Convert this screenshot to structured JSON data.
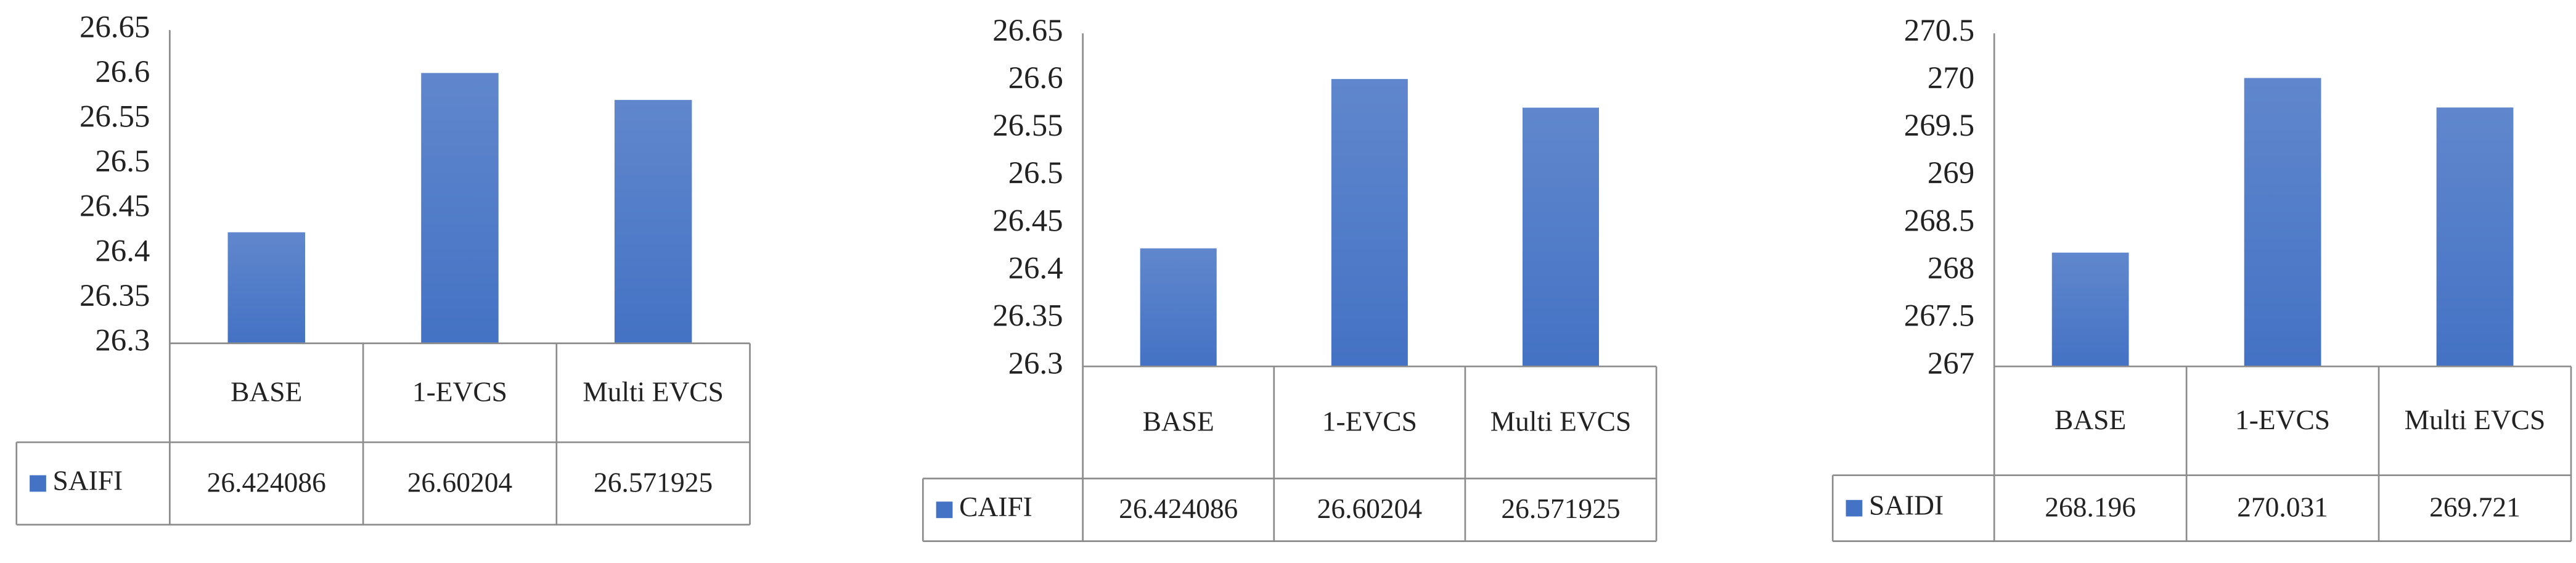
{
  "chart_data": [
    {
      "type": "bar",
      "categories": [
        "BASE",
        "1-EVCS",
        "Multi EVCS"
      ],
      "series": [
        {
          "name": "SAIFI",
          "color": "#4472c4",
          "values": [
            26.424086,
            26.60204,
            26.571925
          ]
        }
      ],
      "ylim": [
        26.3,
        26.65
      ],
      "yticks": [
        26.3,
        26.35,
        26.4,
        26.45,
        26.5,
        26.55,
        26.6,
        26.65
      ]
    },
    {
      "type": "bar",
      "categories": [
        "BASE",
        "1-EVCS",
        "Multi EVCS"
      ],
      "series": [
        {
          "name": "CAIFI",
          "color": "#4472c4",
          "values": [
            26.424086,
            26.60204,
            26.571925
          ]
        }
      ],
      "ylim": [
        26.3,
        26.65
      ],
      "yticks": [
        26.3,
        26.35,
        26.4,
        26.45,
        26.5,
        26.55,
        26.6,
        26.65
      ]
    },
    {
      "type": "bar",
      "categories": [
        "BASE",
        "1-EVCS",
        "Multi EVCS"
      ],
      "series": [
        {
          "name": "SAIDI",
          "color": "#4472c4",
          "values": [
            268.196,
            270.031,
            269.721
          ]
        }
      ],
      "ylim": [
        267,
        270.5
      ],
      "yticks": [
        267,
        267.5,
        268,
        268.5,
        269,
        269.5,
        270,
        270.5
      ]
    }
  ]
}
